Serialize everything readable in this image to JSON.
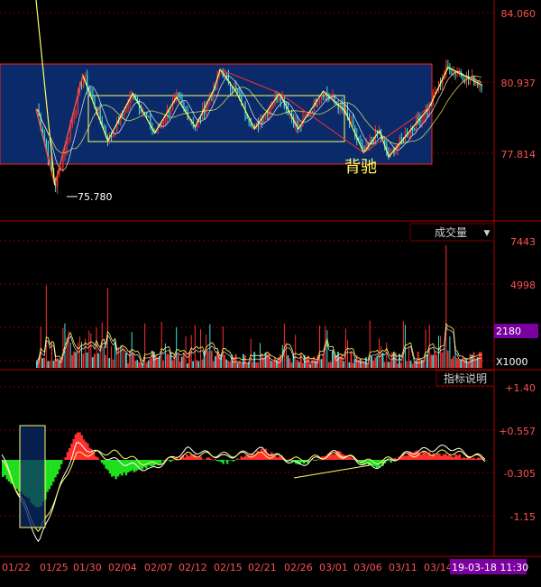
{
  "colors": {
    "background": "#000000",
    "grid": "#7a0000",
    "axis_text": "#ff5050",
    "up": "#ff3030",
    "down": "#40e0e0",
    "box_fill": "#0a2a6a",
    "box_border": "#ff2020",
    "highlight": "#ffff60",
    "price_line": "#ffffff",
    "badge_bg": "#7a00a0"
  },
  "price_panel": {
    "y_ticks": [
      "84.060",
      "80.937",
      "77.814"
    ],
    "low_label": "75.780",
    "divergence_label": "背驰"
  },
  "volume_panel": {
    "menu_label": "成交量",
    "menu_arrow": "▼",
    "y_ticks": [
      "7443",
      "4998"
    ],
    "current_value": "2180",
    "unit_label": "X1000"
  },
  "indicator_panel": {
    "help_label": "指标说明",
    "y_ticks": [
      "+1.40",
      "+0.557",
      "-0.305",
      "-1.15"
    ]
  },
  "x_axis": {
    "labels": [
      "01/22",
      "01/25",
      "01/30",
      "02/04",
      "02/07",
      "02/12",
      "02/15",
      "02/21",
      "02/26",
      "03/01",
      "03/06",
      "03/11",
      "03/14"
    ],
    "timestamp": "19-03-18 11:30"
  },
  "chart_data": [
    {
      "type": "line",
      "title": "",
      "x": [
        "01/22",
        "01/25",
        "01/30",
        "02/04",
        "02/07",
        "02/12",
        "02/15",
        "02/21",
        "02/26",
        "03/01",
        "03/06",
        "03/11",
        "03/14",
        "03/18"
      ],
      "series": [
        {
          "values": [
            79.8,
            76.6,
            80.2,
            79.0,
            79.8,
            80.7,
            79.5,
            80.2,
            79.5,
            79.7,
            77.5,
            78.2,
            79.8,
            80.8
          ]
        }
      ],
      "zigzag": [
        [
          -0.4,
          79.6
        ],
        [
          0.2,
          75.78
        ],
        [
          1.1,
          81.3
        ],
        [
          1.9,
          78.0
        ],
        [
          2.7,
          80.4
        ],
        [
          3.4,
          78.4
        ],
        [
          4.1,
          80.2
        ],
        [
          4.7,
          78.7
        ],
        [
          5.3,
          80.6
        ],
        [
          5.5,
          81.6
        ],
        [
          6.0,
          80.5
        ],
        [
          6.6,
          78.6
        ],
        [
          7.4,
          80.4
        ],
        [
          8.0,
          78.6
        ],
        [
          8.8,
          80.5
        ],
        [
          9.5,
          79.5
        ],
        [
          10.1,
          77.4
        ],
        [
          10.6,
          78.5
        ],
        [
          10.9,
          77.2
        ],
        [
          12.2,
          79.7
        ],
        [
          12.8,
          81.7
        ],
        [
          13.9,
          80.8
        ]
      ],
      "ylim": [
        74.2,
        85.0
      ]
    },
    {
      "type": "bar",
      "title": "",
      "x": [
        "01/22",
        "01/25",
        "01/30",
        "02/04",
        "02/07",
        "02/12",
        "02/15",
        "02/21",
        "02/26",
        "03/01",
        "03/06",
        "03/11",
        "03/14",
        "03/18"
      ],
      "series": [
        {
          "values": [
            600,
            1500,
            900,
            700,
            650,
            700,
            600,
            620,
            580,
            650,
            700,
            620,
            650,
            700
          ]
        }
      ],
      "peaks": [
        5000,
        7443
      ],
      "ylim": [
        0,
        8000
      ]
    },
    {
      "type": "bar",
      "title": "",
      "x": [
        "01/22",
        "01/25",
        "01/30",
        "02/04",
        "02/07",
        "02/12",
        "02/15",
        "02/21",
        "02/26",
        "03/01",
        "03/06",
        "03/11",
        "03/14",
        "03/18"
      ],
      "series": [
        {
          "values": [
            -0.3,
            -0.95,
            0.55,
            -0.35,
            -0.1,
            0.1,
            -0.05,
            0.2,
            -0.1,
            0.15,
            -0.15,
            0.15,
            0.1,
            0.0
          ]
        }
      ],
      "lines": [
        {
          "values": [
            0.1,
            -1.6,
            0.3,
            0.0,
            -0.2,
            0.2,
            0.05,
            0.2,
            -0.1,
            0.15,
            -0.15,
            0.15,
            0.25,
            0.0
          ]
        },
        {
          "values": [
            0.0,
            -1.4,
            0.1,
            0.15,
            -0.1,
            0.1,
            0.1,
            0.1,
            0.0,
            0.1,
            -0.05,
            0.1,
            0.15,
            0.05
          ]
        }
      ],
      "yticks": [
        1.4,
        0.557,
        -0.305,
        -1.15
      ],
      "ylim": [
        -1.65,
        1.55
      ]
    }
  ]
}
